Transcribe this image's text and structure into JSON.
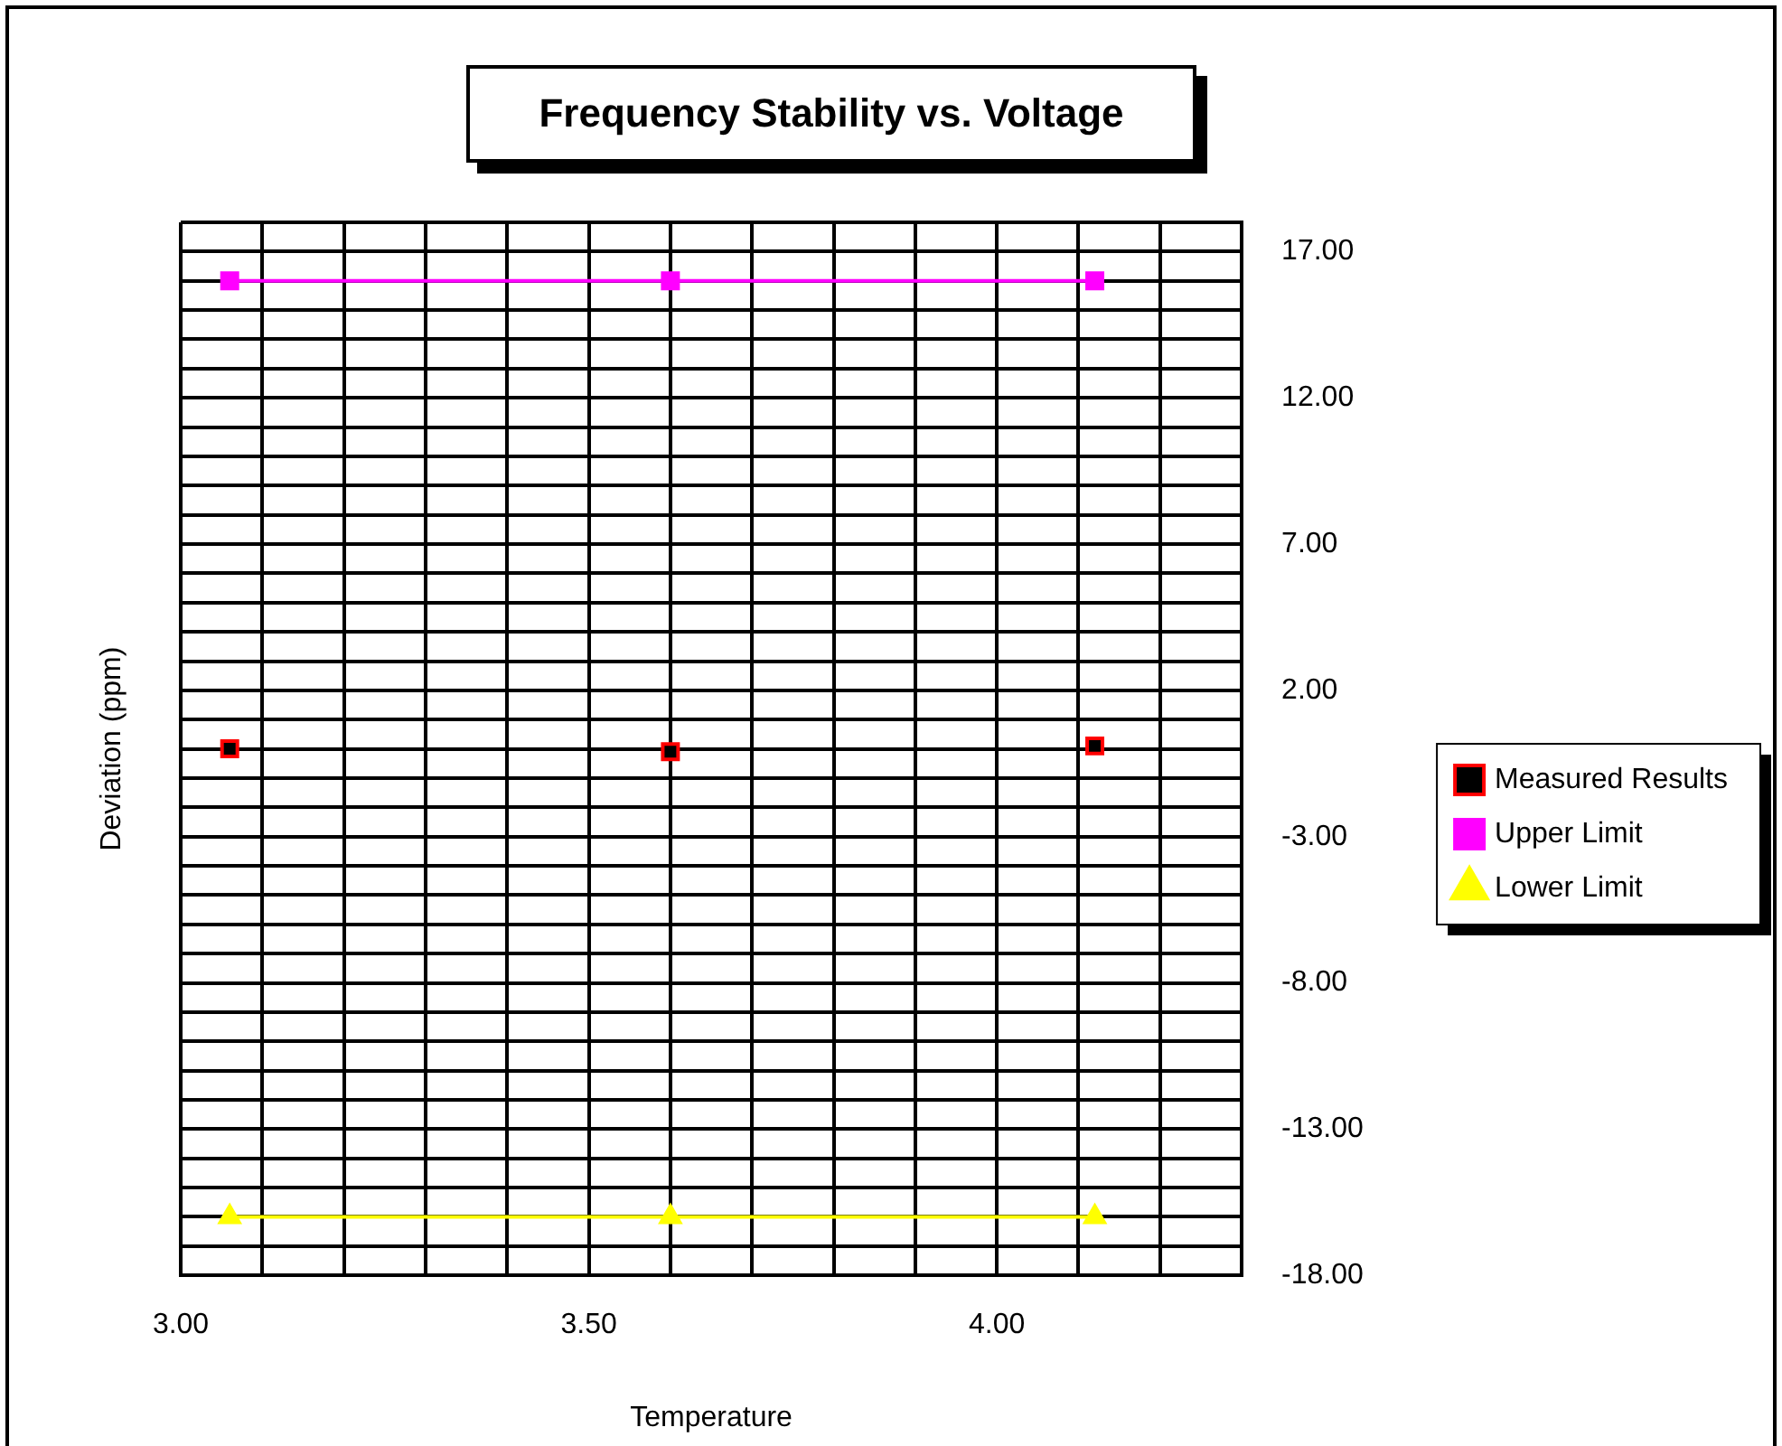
{
  "chart_data": {
    "type": "scatter",
    "title": "Frequency Stability vs. Voltage",
    "xlabel": "Temperature",
    "ylabel": "Deviation (ppm)",
    "x": [
      3.06,
      3.6,
      4.12
    ],
    "series": [
      {
        "name": "Measured Results",
        "type": "scatter",
        "marker": "square",
        "color": "#000000",
        "values": [
          0,
          -0.1,
          0.1
        ]
      },
      {
        "name": "Upper Limit",
        "type": "line",
        "marker": "square",
        "color": "#ff00ff",
        "values": [
          16,
          16,
          16
        ]
      },
      {
        "name": "Lower Limit",
        "type": "line",
        "marker": "triangle",
        "color": "#ffff00",
        "values": [
          -16,
          -16,
          -16
        ]
      }
    ],
    "xlim": [
      3,
      4.3
    ],
    "xticks": [
      {
        "value": 3,
        "label": "3.00"
      },
      {
        "value": 3.1,
        "label": null
      },
      {
        "value": 3.2,
        "label": null
      },
      {
        "value": 3.3,
        "label": null
      },
      {
        "value": 3.4,
        "label": null
      },
      {
        "value": 3.5,
        "label": "3.50"
      },
      {
        "value": 3.6,
        "label": null
      },
      {
        "value": 3.7,
        "label": null
      },
      {
        "value": 3.8,
        "label": null
      },
      {
        "value": 3.9,
        "label": null
      },
      {
        "value": 4,
        "label": "4.00"
      },
      {
        "value": 4.1,
        "label": null
      },
      {
        "value": 4.2,
        "label": null
      },
      {
        "value": 4.3,
        "label": null
      }
    ],
    "ylim": [
      -18,
      18
    ],
    "yticks": [
      {
        "value": -18,
        "label": "-18.00"
      },
      {
        "value": -17,
        "label": null
      },
      {
        "value": -16,
        "label": null
      },
      {
        "value": -15,
        "label": null
      },
      {
        "value": -14,
        "label": null
      },
      {
        "value": -13,
        "label": "-13.00"
      },
      {
        "value": -12,
        "label": null
      },
      {
        "value": -11,
        "label": null
      },
      {
        "value": -10,
        "label": null
      },
      {
        "value": -9,
        "label": null
      },
      {
        "value": -8,
        "label": "-8.00"
      },
      {
        "value": -7,
        "label": null
      },
      {
        "value": -6,
        "label": null
      },
      {
        "value": -5,
        "label": null
      },
      {
        "value": -4,
        "label": null
      },
      {
        "value": -3,
        "label": "-3.00"
      },
      {
        "value": -2,
        "label": null
      },
      {
        "value": -1,
        "label": null
      },
      {
        "value": 0,
        "label": null
      },
      {
        "value": 1,
        "label": null
      },
      {
        "value": 2,
        "label": "2.00"
      },
      {
        "value": 3,
        "label": null
      },
      {
        "value": 4,
        "label": null
      },
      {
        "value": 5,
        "label": null
      },
      {
        "value": 6,
        "label": null
      },
      {
        "value": 7,
        "label": "7.00"
      },
      {
        "value": 8,
        "label": null
      },
      {
        "value": 9,
        "label": null
      },
      {
        "value": 10,
        "label": null
      },
      {
        "value": 11,
        "label": null
      },
      {
        "value": 12,
        "label": "12.00"
      },
      {
        "value": 13,
        "label": null
      },
      {
        "value": 14,
        "label": null
      },
      {
        "value": 15,
        "label": null
      },
      {
        "value": 16,
        "label": null
      },
      {
        "value": 17,
        "label": "17.00"
      },
      {
        "value": 18,
        "label": null
      }
    ],
    "grid": true,
    "legend": "right"
  }
}
